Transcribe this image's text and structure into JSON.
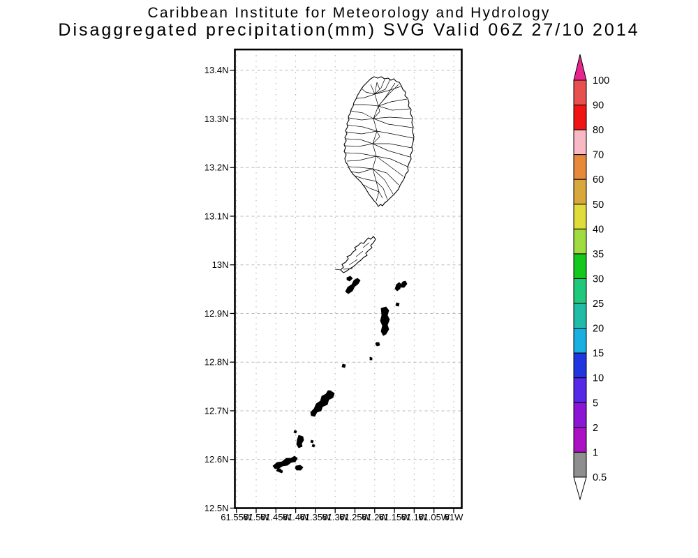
{
  "title": {
    "line1": "Caribbean Institute for Meteorology and Hydrology",
    "line2": "Disaggregated precipitation(mm) SVG Valid 06Z 27/10 2014"
  },
  "plot": {
    "y_axis_labels": [
      "13.4N",
      "13.3N",
      "13.2N",
      "13.1N",
      "13N",
      "12.9N",
      "12.8N",
      "12.7N",
      "12.6N",
      "12.5N"
    ],
    "x_axis_labels": [
      "61.55W",
      "61.5W",
      "61.45W",
      "61.4W",
      "61.35W",
      "61.3W",
      "61.25W",
      "61.2W",
      "61.15W",
      "61.1W",
      "61.05W",
      "61W"
    ]
  },
  "colorbar": {
    "labels": [
      "100",
      "90",
      "80",
      "70",
      "60",
      "50",
      "40",
      "35",
      "30",
      "25",
      "20",
      "15",
      "10",
      "5",
      "2",
      "1",
      "0.5"
    ],
    "segment_colors": [
      "#e85050",
      "#f01414",
      "#f8b8c4",
      "#e8883a",
      "#d8a83c",
      "#e0dc3a",
      "#a0dc40",
      "#14c81e",
      "#20c87c",
      "#20bca8",
      "#18b0e0",
      "#2034e0",
      "#5628e8",
      "#8c14d4",
      "#ac10c4",
      "#8e8e8e"
    ],
    "arrow_top_color": "#e8258c",
    "arrow_bottom_color": "#ffffff"
  },
  "chart_data": {
    "type": "map",
    "title": "Disaggregated precipitation(mm) SVG Valid 06Z 27/10 2014",
    "subtitle": "Caribbean Institute for Meteorology and Hydrology",
    "lat_ticks": [
      13.4,
      13.3,
      13.2,
      13.1,
      13.0,
      12.9,
      12.8,
      12.7,
      12.6,
      12.5
    ],
    "lon_ticks_w": [
      61.55,
      61.5,
      61.45,
      61.4,
      61.35,
      61.3,
      61.25,
      61.2,
      61.15,
      61.1,
      61.05,
      61.0
    ],
    "colorbar_levels": [
      0.5,
      1,
      2,
      5,
      10,
      15,
      20,
      25,
      30,
      35,
      40,
      50,
      60,
      70,
      80,
      90,
      100
    ],
    "units": "mm",
    "grid": true,
    "legend_position": "right"
  }
}
